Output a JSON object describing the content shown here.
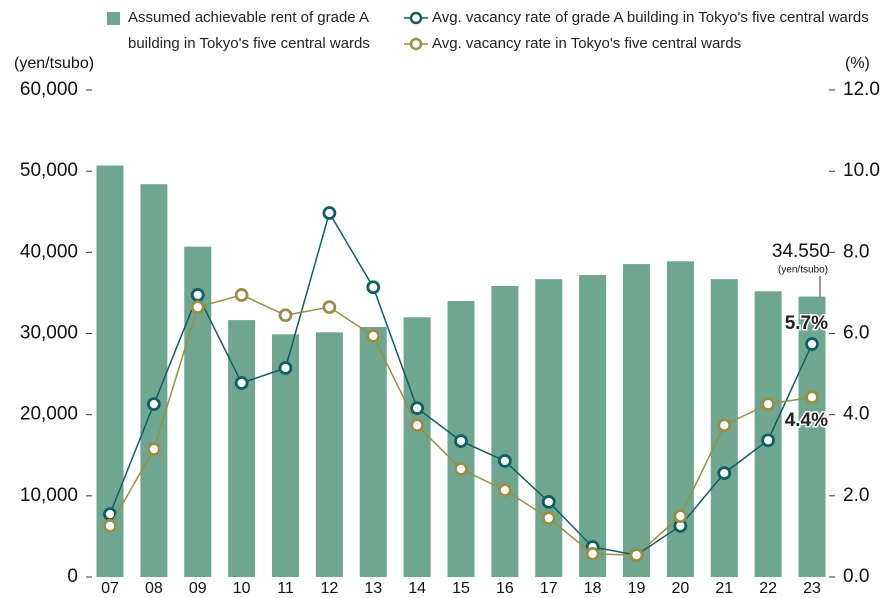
{
  "chart_data": {
    "type": "bar_line",
    "y_label": "(yen/tsubo)",
    "y2_label": "(%)",
    "categories": [
      "07",
      "08",
      "09",
      "10",
      "11",
      "12",
      "13",
      "14",
      "15",
      "16",
      "17",
      "18",
      "19",
      "20",
      "21",
      "22",
      "23"
    ],
    "ylim": [
      0,
      60000
    ],
    "yticks": [
      0,
      {
        "value": 10000,
        "label": "10,000"
      },
      {
        "value": 20000,
        "label": "20,000"
      },
      {
        "value": 30000,
        "label": "30,000"
      },
      {
        "value": 40000,
        "label": "40,000"
      },
      {
        "value": 50000,
        "label": "50,000"
      },
      {
        "value": 60000,
        "label": "60,000"
      }
    ],
    "y2lim": [
      0,
      12
    ],
    "y2ticks": [
      {
        "value": 0,
        "label": "0.0"
      },
      {
        "value": 2,
        "label": "2.0"
      },
      {
        "value": 4,
        "label": "4.0"
      },
      {
        "value": 6,
        "label": "6.0"
      },
      {
        "value": 8,
        "label": "8.0"
      },
      {
        "value": 10,
        "label": "10.0"
      },
      {
        "value": 12,
        "label": "12.0"
      }
    ],
    "grid": false,
    "legend": "top",
    "series": [
      {
        "name": "Assumed achievable rent of grade A building in Tokyo's five central wards",
        "type": "bar",
        "color": "#6fa690",
        "values": [
          50700,
          48400,
          40700,
          31650,
          29900,
          30150,
          30800,
          32000,
          34000,
          35850,
          36700,
          37200,
          38550,
          38900,
          36700,
          35200,
          34550
        ],
        "value_labels": [
          null,
          null,
          null,
          null,
          null,
          null,
          null,
          null,
          null,
          null,
          null,
          null,
          null,
          null,
          null,
          null,
          "34.550"
        ]
      },
      {
        "name": "Avg. vacancy rate of grade A building in Tokyo's five central wards",
        "type": "line",
        "axis": "y2",
        "color": "#0f5f64",
        "values": [
          1.55,
          4.26,
          6.95,
          4.78,
          5.15,
          8.97,
          7.14,
          4.16,
          3.35,
          2.86,
          1.85,
          0.74,
          0.54,
          1.26,
          2.56,
          3.37,
          5.74
        ],
        "value_labels": [
          null,
          null,
          null,
          null,
          null,
          null,
          null,
          null,
          null,
          null,
          null,
          null,
          null,
          null,
          null,
          null,
          "5.7%"
        ]
      },
      {
        "name": "Avg. vacancy rate in Tokyo's five central wards",
        "type": "line",
        "axis": "y2",
        "color": "#9a8e46",
        "values": [
          1.26,
          3.15,
          6.65,
          6.95,
          6.45,
          6.65,
          5.94,
          3.74,
          2.66,
          2.14,
          1.45,
          0.57,
          0.54,
          1.5,
          3.74,
          4.26,
          4.43
        ],
        "value_labels": [
          null,
          null,
          null,
          null,
          null,
          null,
          null,
          null,
          null,
          null,
          null,
          null,
          null,
          null,
          null,
          null,
          "4.4%"
        ]
      }
    ],
    "annotation": "(yen/tsubo)"
  }
}
